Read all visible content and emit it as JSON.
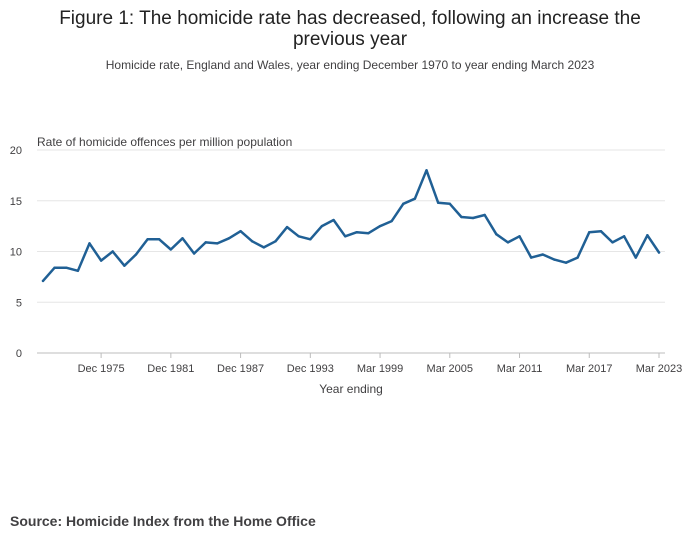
{
  "title": "Figure 1: The homicide rate has decreased, following an increase the previous year",
  "subtitle": "Homicide rate, England and Wales, year ending December 1970 to year ending March 2023",
  "source": "Source: Homicide Index from the Home Office",
  "chart_data": {
    "type": "line",
    "ylabel": "Rate of homicide offences per million population",
    "xlabel": "Year ending",
    "ylim": [
      0,
      20
    ],
    "yticks": [
      0,
      5,
      10,
      15,
      20
    ],
    "xtick_labels": [
      {
        "label": "Dec 1975",
        "index": 5
      },
      {
        "label": "Dec 1981",
        "index": 11
      },
      {
        "label": "Dec 1987",
        "index": 17
      },
      {
        "label": "Dec 1993",
        "index": 23
      },
      {
        "label": "Mar 1999",
        "index": 29
      },
      {
        "label": "Mar 2005",
        "index": 35
      },
      {
        "label": "Mar 2011",
        "index": 41
      },
      {
        "label": "Mar 2017",
        "index": 47
      },
      {
        "label": "Mar 2023",
        "index": 53
      }
    ],
    "grid": true,
    "line_color": "#206095",
    "series": [
      {
        "values": [
          7.1,
          8.4,
          8.4,
          8.1,
          10.8,
          9.1,
          10.0,
          8.6,
          9.7,
          11.2,
          11.2,
          10.2,
          11.3,
          9.8,
          10.9,
          10.8,
          11.3,
          12.0,
          11.0,
          10.4,
          11.0,
          12.4,
          11.5,
          11.2,
          12.5,
          13.1,
          11.5,
          11.9,
          11.8,
          12.5,
          13.0,
          14.7,
          15.2,
          18.0,
          14.8,
          14.7,
          13.4,
          13.3,
          13.6,
          11.7,
          10.9,
          11.5,
          9.4,
          9.7,
          9.2,
          8.9,
          9.4,
          11.9,
          12.0,
          10.9,
          11.5,
          9.4,
          11.6,
          9.9
        ]
      }
    ]
  }
}
